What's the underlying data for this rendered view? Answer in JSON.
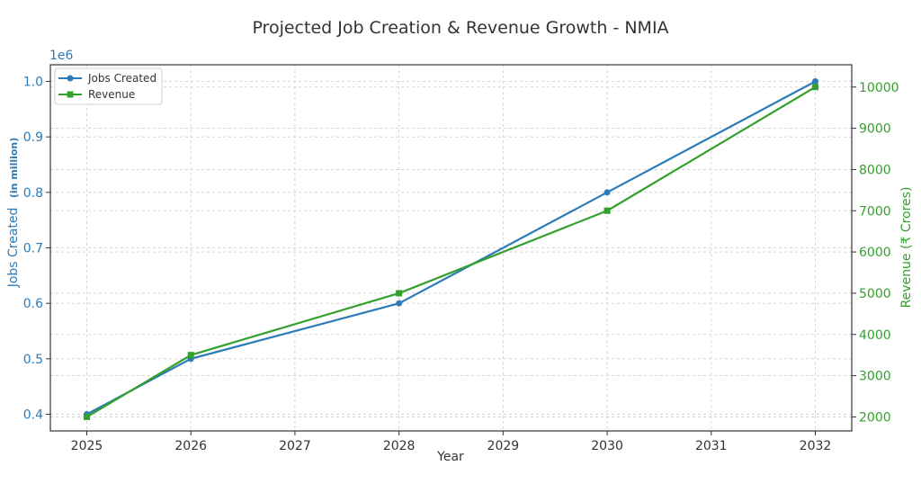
{
  "chart_data": {
    "type": "line",
    "title": "Projected Job Creation & Revenue Growth - NMIA",
    "xlabel": "Year",
    "ylabel_left": "Jobs Created",
    "ylabel_left_suffix": "(in million)",
    "ylabel_right": "Revenue (₹ Crores)",
    "left_offset_text": "1e6",
    "x": [
      2025,
      2026,
      2027,
      2028,
      2029,
      2030,
      2031,
      2032
    ],
    "xlim": [
      2024.65,
      2032.35
    ],
    "ylim_left": [
      0.37,
      1.03
    ],
    "ylim_right": [
      1660,
      10540
    ],
    "left_ticks": [
      "0.4",
      "0.5",
      "0.6",
      "0.7",
      "0.8",
      "0.9",
      "1.0"
    ],
    "right_ticks": [
      "2000",
      "3000",
      "4000",
      "5000",
      "6000",
      "7000",
      "8000",
      "9000",
      "10000"
    ],
    "grid": true,
    "legend_position": "top-left",
    "series": [
      {
        "name": "Jobs Created",
        "axis": "left",
        "marker": "circle",
        "color": "#2b7bb9",
        "x": [
          2025,
          2026,
          2028,
          2030,
          2032
        ],
        "values": [
          0.4,
          0.5,
          0.6,
          0.8,
          1.0
        ]
      },
      {
        "name": "Revenue",
        "axis": "right",
        "marker": "square",
        "color": "#33a02c",
        "x": [
          2025,
          2026,
          2028,
          2030,
          2032
        ],
        "values": [
          2000,
          3500,
          5000,
          7000,
          10000
        ]
      }
    ],
    "colors": {
      "left_axis": "#2b7bb9",
      "right_axis": "#33a02c",
      "grid": "#cccccc",
      "spine": "#333333"
    }
  }
}
